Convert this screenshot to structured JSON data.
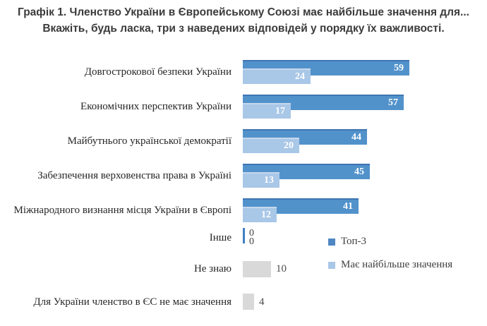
{
  "title": {
    "line1": "Графік 1. Членство України в Європейському Союзі має найбільше значення для...",
    "line2": "Вкажіть, будь ласка, три з наведених відповідей у порядку їх важливості."
  },
  "legend": [
    {
      "label": "Топ-3",
      "color": "#4e86c2"
    },
    {
      "label": "Має найбільше значення",
      "color": "#a9c7e7"
    }
  ],
  "colors": {
    "top3_bar": "#5292cb",
    "top3_bar_edge": "#3e75b2",
    "most_bar": "#a9c7e7",
    "most_bar_edge": "#c6d8ee",
    "gray_bar": "#d9d9d9",
    "zero_tick": "#3f7fc4",
    "on_bar_value_text": "#ffffff",
    "outside_value_text": "#4a4a4a"
  },
  "chart_data": {
    "type": "bar",
    "orientation": "horizontal",
    "title": "Графік 1. Членство України в Європейському Союзі має найбільше значення для... Вкажіть, будь ласка, три з наведених відповідей у порядку їх важливості.",
    "categories": [
      "Довгострокової безпеки України",
      "Економічних перспектив України",
      "Майбутнього української демократії",
      "Забезпечення верховенства права в Україні",
      "Міжнародного визнання місця України в Європі",
      "Інше",
      "Не знаю",
      "Для України членство в ЄС не має значення"
    ],
    "series": [
      {
        "name": "Топ-3",
        "color": "#5292cb",
        "values": [
          59,
          57,
          44,
          45,
          41,
          0,
          null,
          null
        ]
      },
      {
        "name": "Має найбільше значення",
        "color": "#a9c7e7",
        "values": [
          24,
          17,
          20,
          13,
          12,
          0,
          null,
          null
        ]
      }
    ],
    "unlabeled_gray_series": {
      "color": "#d9d9d9",
      "values": [
        null,
        null,
        null,
        null,
        null,
        null,
        10,
        4
      ]
    },
    "xlim": [
      0,
      86
    ],
    "grid": false,
    "legend_position": "middle-right",
    "value_labels": "on-bars (white) for blue series, outside (gray) for gray/zero bars"
  }
}
